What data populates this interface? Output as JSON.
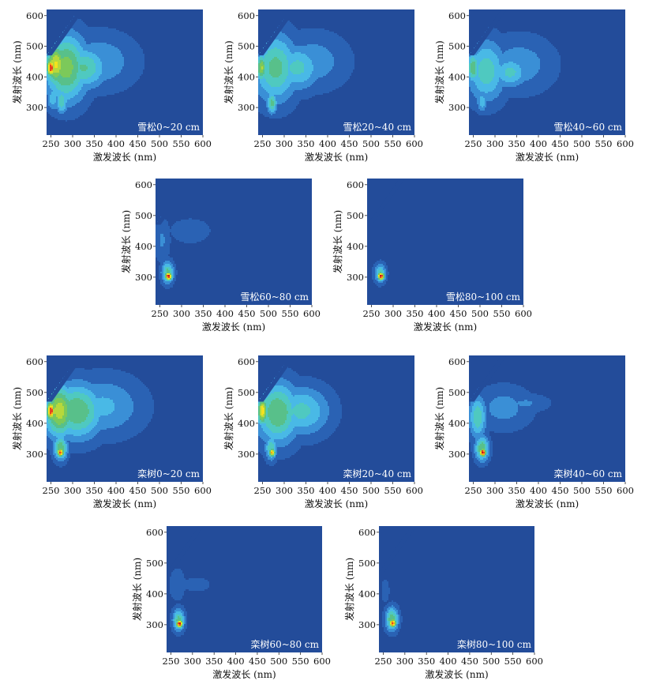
{
  "colors": {
    "background": "#234c9a",
    "scale": [
      "#234c9a",
      "#2a62b4",
      "#3a8fd6",
      "#49b9e6",
      "#4fc9c0",
      "#58c08a",
      "#7cc95a",
      "#b7d83c",
      "#f2e21e",
      "#f5a21c",
      "#e8431f",
      "#c4161c"
    ]
  },
  "chart_data": [
    {
      "type": "heatmap",
      "label": "雪松0~20 cm",
      "xlabel": "激发波长 (nm)",
      "ylabel": "发射波长 (nm)",
      "xlim": [
        240,
        600
      ],
      "ylim": [
        210,
        620
      ],
      "xticks": [
        "250",
        "300",
        "350",
        "400",
        "450",
        "500",
        "550",
        "600"
      ],
      "yticks": [
        "300",
        "400",
        "500",
        "600"
      ],
      "blobs": [
        {
          "ex": 250,
          "em": 430,
          "w": 10,
          "h": 30,
          "level": 0.95
        },
        {
          "ex": 262,
          "em": 440,
          "w": 25,
          "h": 70,
          "level": 0.7
        },
        {
          "ex": 285,
          "em": 430,
          "w": 50,
          "h": 110,
          "level": 0.55
        },
        {
          "ex": 325,
          "em": 430,
          "w": 55,
          "h": 70,
          "level": 0.42
        },
        {
          "ex": 360,
          "em": 450,
          "w": 85,
          "h": 90,
          "level": 0.22
        },
        {
          "ex": 275,
          "em": 320,
          "w": 14,
          "h": 40,
          "level": 0.4
        },
        {
          "ex": 255,
          "em": 330,
          "w": 14,
          "h": 40,
          "level": 0.3
        }
      ]
    },
    {
      "type": "heatmap",
      "label": "雪松20~40 cm",
      "xlabel": "激发波长 (nm)",
      "ylabel": "发射波长 (nm)",
      "xlim": [
        240,
        600
      ],
      "ylim": [
        210,
        620
      ],
      "xticks": [
        "250",
        "300",
        "350",
        "400",
        "450",
        "500",
        "550",
        "600"
      ],
      "yticks": [
        "300",
        "400",
        "500",
        "600"
      ],
      "blobs": [
        {
          "ex": 248,
          "em": 430,
          "w": 12,
          "h": 45,
          "level": 0.6
        },
        {
          "ex": 280,
          "em": 430,
          "w": 50,
          "h": 110,
          "level": 0.45
        },
        {
          "ex": 330,
          "em": 430,
          "w": 55,
          "h": 75,
          "level": 0.35
        },
        {
          "ex": 365,
          "em": 450,
          "w": 80,
          "h": 90,
          "level": 0.2
        },
        {
          "ex": 272,
          "em": 315,
          "w": 12,
          "h": 35,
          "level": 0.45
        }
      ]
    },
    {
      "type": "heatmap",
      "label": "雪松40~60 cm",
      "xlabel": "激发波长 (nm)",
      "ylabel": "发射波长 (nm)",
      "xlim": [
        240,
        600
      ],
      "ylim": [
        210,
        620
      ],
      "xticks": [
        "250",
        "300",
        "350",
        "400",
        "450",
        "500",
        "550",
        "600"
      ],
      "yticks": [
        "300",
        "400",
        "500",
        "600"
      ],
      "blobs": [
        {
          "ex": 250,
          "em": 430,
          "w": 14,
          "h": 50,
          "level": 0.5
        },
        {
          "ex": 280,
          "em": 420,
          "w": 45,
          "h": 100,
          "level": 0.38
        },
        {
          "ex": 335,
          "em": 415,
          "w": 40,
          "h": 50,
          "level": 0.35
        },
        {
          "ex": 355,
          "em": 440,
          "w": 80,
          "h": 90,
          "level": 0.2
        },
        {
          "ex": 270,
          "em": 320,
          "w": 12,
          "h": 35,
          "level": 0.3
        }
      ]
    },
    {
      "type": "heatmap",
      "label": "雪松60~80 cm",
      "xlabel": "激发波长 (nm)",
      "ylabel": "发射波长 (nm)",
      "xlim": [
        240,
        600
      ],
      "ylim": [
        210,
        620
      ],
      "xticks": [
        "250",
        "300",
        "350",
        "400",
        "450",
        "500",
        "550",
        "600"
      ],
      "yticks": [
        "300",
        "400",
        "500",
        "600"
      ],
      "blobs": [
        {
          "ex": 270,
          "em": 303,
          "w": 8,
          "h": 14,
          "level": 1.0
        },
        {
          "ex": 268,
          "em": 315,
          "w": 14,
          "h": 35,
          "level": 0.45
        },
        {
          "ex": 255,
          "em": 420,
          "w": 18,
          "h": 70,
          "level": 0.15
        },
        {
          "ex": 320,
          "em": 450,
          "w": 70,
          "h": 60,
          "level": 0.07
        }
      ]
    },
    {
      "type": "heatmap",
      "label": "雪松80~100 cm",
      "xlabel": "激发波长 (nm)",
      "ylabel": "发射波长 (nm)",
      "xlim": [
        240,
        600
      ],
      "ylim": [
        210,
        620
      ],
      "xticks": [
        "250",
        "300",
        "350",
        "400",
        "450",
        "500",
        "550",
        "600"
      ],
      "yticks": [
        "300",
        "400",
        "500",
        "600"
      ],
      "blobs": [
        {
          "ex": 272,
          "em": 303,
          "w": 8,
          "h": 13,
          "level": 1.0
        },
        {
          "ex": 270,
          "em": 312,
          "w": 13,
          "h": 30,
          "level": 0.4
        }
      ]
    },
    {
      "type": "heatmap",
      "label": "栾树0~20 cm",
      "xlabel": "激发波长 (nm)",
      "ylabel": "发射波长 (nm)",
      "xlim": [
        240,
        600
      ],
      "ylim": [
        210,
        620
      ],
      "xticks": [
        "250",
        "300",
        "350",
        "400",
        "450",
        "500",
        "550",
        "600"
      ],
      "yticks": [
        "300",
        "400",
        "500",
        "600"
      ],
      "blobs": [
        {
          "ex": 250,
          "em": 440,
          "w": 10,
          "h": 30,
          "level": 0.95
        },
        {
          "ex": 270,
          "em": 440,
          "w": 35,
          "h": 85,
          "level": 0.65
        },
        {
          "ex": 310,
          "em": 440,
          "w": 60,
          "h": 90,
          "level": 0.5
        },
        {
          "ex": 370,
          "em": 455,
          "w": 90,
          "h": 95,
          "level": 0.25
        },
        {
          "ex": 272,
          "em": 305,
          "w": 8,
          "h": 14,
          "level": 0.95
        },
        {
          "ex": 272,
          "em": 320,
          "w": 16,
          "h": 40,
          "level": 0.5
        }
      ]
    },
    {
      "type": "heatmap",
      "label": "栾树20~40 cm",
      "xlabel": "激发波长 (nm)",
      "ylabel": "发射波长 (nm)",
      "xlim": [
        240,
        600
      ],
      "ylim": [
        210,
        620
      ],
      "xticks": [
        "250",
        "300",
        "350",
        "400",
        "450",
        "500",
        "550",
        "600"
      ],
      "yticks": [
        "300",
        "400",
        "500",
        "600"
      ],
      "blobs": [
        {
          "ex": 250,
          "em": 440,
          "w": 12,
          "h": 45,
          "level": 0.75
        },
        {
          "ex": 285,
          "em": 435,
          "w": 50,
          "h": 100,
          "level": 0.5
        },
        {
          "ex": 340,
          "em": 440,
          "w": 65,
          "h": 80,
          "level": 0.35
        },
        {
          "ex": 272,
          "em": 305,
          "w": 8,
          "h": 14,
          "level": 0.8
        },
        {
          "ex": 270,
          "em": 320,
          "w": 14,
          "h": 40,
          "level": 0.4
        }
      ]
    },
    {
      "type": "heatmap",
      "label": "栾树40~60 cm",
      "xlabel": "激发波长 (nm)",
      "ylabel": "发射波长 (nm)",
      "xlim": [
        240,
        600
      ],
      "ylim": [
        210,
        620
      ],
      "xticks": [
        "250",
        "300",
        "350",
        "400",
        "450",
        "500",
        "550",
        "600"
      ],
      "yticks": [
        "300",
        "400",
        "500",
        "600"
      ],
      "blobs": [
        {
          "ex": 272,
          "em": 305,
          "w": 8,
          "h": 14,
          "level": 1.0
        },
        {
          "ex": 270,
          "em": 318,
          "w": 16,
          "h": 40,
          "level": 0.5
        },
        {
          "ex": 260,
          "em": 420,
          "w": 20,
          "h": 70,
          "level": 0.4
        },
        {
          "ex": 320,
          "em": 450,
          "w": 65,
          "h": 70,
          "level": 0.18
        },
        {
          "ex": 370,
          "em": 465,
          "w": 55,
          "h": 30,
          "level": 0.15
        }
      ]
    },
    {
      "type": "heatmap",
      "label": "栾树60~80 cm",
      "xlabel": "激发波长 (nm)",
      "ylabel": "发射波长 (nm)",
      "xlim": [
        240,
        600
      ],
      "ylim": [
        210,
        620
      ],
      "xticks": [
        "250",
        "300",
        "350",
        "400",
        "450",
        "500",
        "550",
        "600"
      ],
      "yticks": [
        "300",
        "400",
        "500",
        "600"
      ],
      "blobs": [
        {
          "ex": 270,
          "em": 303,
          "w": 8,
          "h": 13,
          "level": 1.0
        },
        {
          "ex": 268,
          "em": 315,
          "w": 14,
          "h": 35,
          "level": 0.45
        },
        {
          "ex": 265,
          "em": 430,
          "w": 25,
          "h": 70,
          "level": 0.08
        },
        {
          "ex": 310,
          "em": 430,
          "w": 40,
          "h": 30,
          "level": 0.08
        }
      ]
    },
    {
      "type": "heatmap",
      "label": "栾树80~100 cm",
      "xlabel": "激发波长 (nm)",
      "ylabel": "发射波长 (nm)",
      "xlim": [
        240,
        600
      ],
      "ylim": [
        210,
        620
      ],
      "xticks": [
        "250",
        "300",
        "350",
        "400",
        "450",
        "500",
        "550",
        "600"
      ],
      "yticks": [
        "300",
        "400",
        "500",
        "600"
      ],
      "blobs": [
        {
          "ex": 272,
          "em": 305,
          "w": 8,
          "h": 14,
          "level": 0.95
        },
        {
          "ex": 270,
          "em": 318,
          "w": 15,
          "h": 38,
          "level": 0.5
        },
        {
          "ex": 255,
          "em": 410,
          "w": 12,
          "h": 50,
          "level": 0.08
        }
      ]
    }
  ]
}
